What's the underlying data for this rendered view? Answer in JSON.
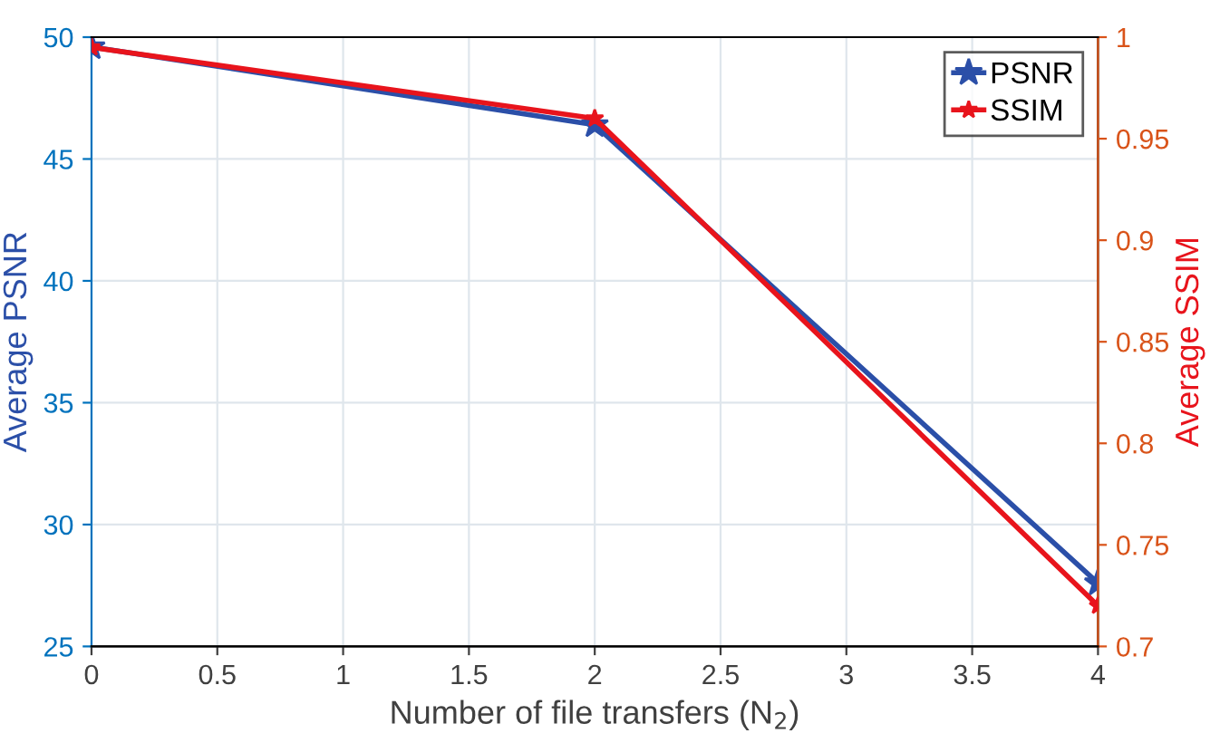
{
  "chart_data": {
    "type": "line",
    "xlabel": "Number of file transfers (N$_{2}$)",
    "ylabel": "Average PSNR",
    "y2label": "Average SSIM",
    "x": [
      0,
      2,
      4
    ],
    "series": [
      {
        "name": "PSNR",
        "color": "#2b4fa8",
        "values": [
          49.6,
          46.4,
          27.6
        ]
      },
      {
        "name": "SSIM",
        "color": "#e8141c",
        "values": [
          0.995,
          0.96,
          0.72
        ],
        "axis": "y2"
      }
    ],
    "xlim": [
      0,
      4
    ],
    "xticks": [
      0,
      0.5,
      1,
      1.5,
      2,
      2.5,
      3,
      3.5,
      4
    ],
    "ylim": [
      25,
      50
    ],
    "yticks": [
      25,
      30,
      35,
      40,
      45,
      50
    ],
    "y2lim": [
      0.7,
      1
    ],
    "y2ticks": [
      0.7,
      0.75,
      0.8,
      0.85,
      0.9,
      0.95,
      1
    ],
    "grid": true,
    "legend": "top right",
    "marker": "star",
    "line_style": "solid"
  }
}
